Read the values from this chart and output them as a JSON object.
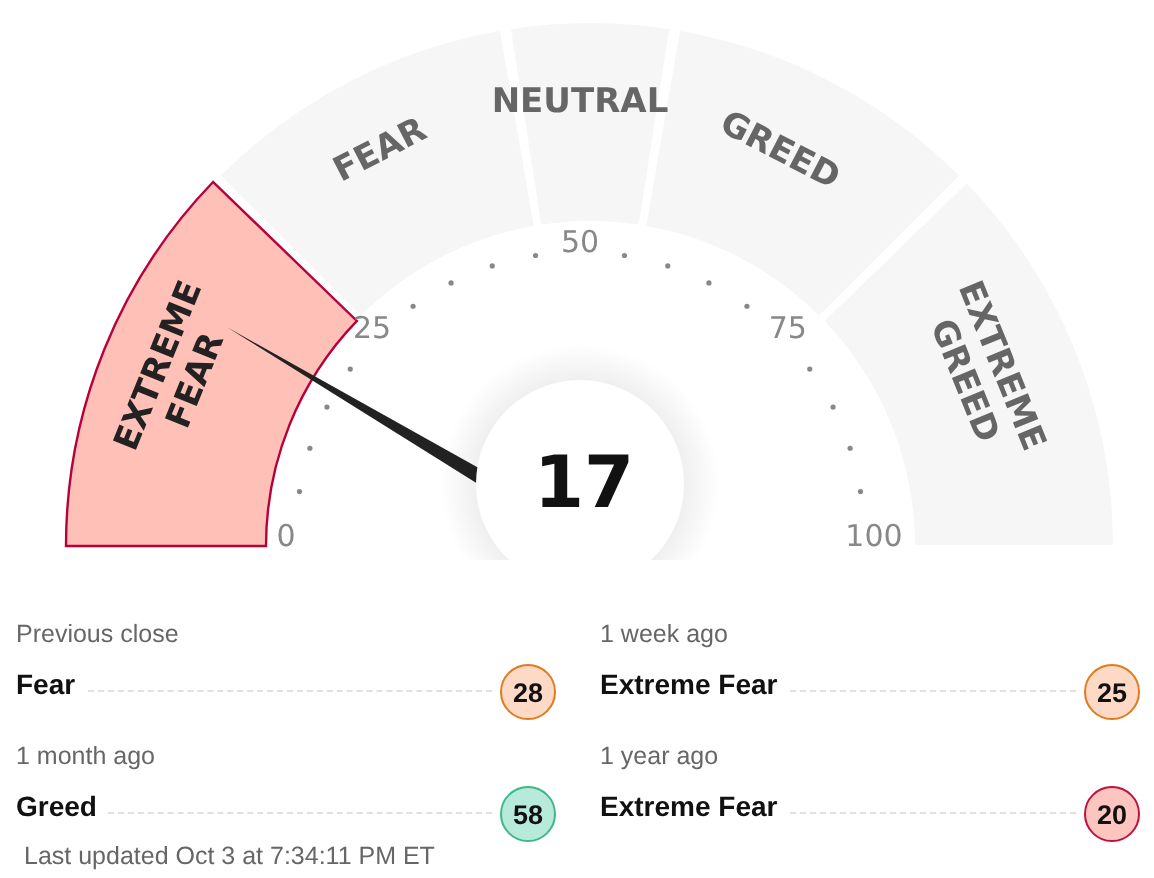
{
  "chart_data": {
    "type": "donut",
    "categories": [
      "EXTREME FEAR",
      "FEAR",
      "NEUTRAL",
      "GREED",
      "EXTREME GREED"
    ],
    "values": [
      25,
      20,
      10,
      20,
      25
    ],
    "colors": [
      "#ffc0b8",
      "#f6f6f6",
      "#f6f6f6",
      "#f6f6f6",
      "#f6f6f6"
    ],
    "needle": "EXTREME FEAR",
    "annotations": [
      "17",
      "0",
      "25",
      "50",
      "75",
      "100",
      "Previous close",
      "Fear",
      "28",
      "1 week ago",
      "Extreme Fear",
      "25",
      "1 month ago",
      "Greed",
      "58",
      "1 year ago",
      "Extreme Fear",
      "20",
      "Last updated Oct 3 at 7:34:11 PM ET"
    ]
  }
}
